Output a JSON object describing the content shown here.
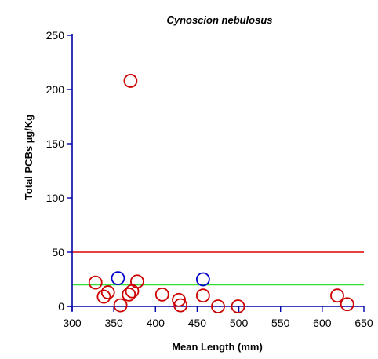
{
  "chart_data": {
    "type": "scatter",
    "title": "Cynoscion nebulosus",
    "xlabel": "Mean Length (mm)",
    "ylabel": "Total PCBs µg/Kg",
    "xlim": [
      300,
      650
    ],
    "ylim": [
      0,
      250
    ],
    "xticks": [
      300,
      350,
      400,
      450,
      500,
      550,
      600,
      650
    ],
    "yticks": [
      0,
      50,
      100,
      150,
      200,
      250
    ],
    "grid": false,
    "legend": "none",
    "series": [
      {
        "color": "#cc0000",
        "points": [
          [
            370,
            208
          ],
          [
            328,
            22
          ],
          [
            338,
            9
          ],
          [
            343,
            13
          ],
          [
            358,
            1
          ],
          [
            368,
            11
          ],
          [
            372,
            14
          ],
          [
            378,
            23
          ],
          [
            408,
            11
          ],
          [
            428,
            6
          ],
          [
            430,
            1
          ],
          [
            457,
            10
          ],
          [
            475,
            0
          ],
          [
            499,
            0
          ],
          [
            618,
            10
          ],
          [
            630,
            2
          ]
        ]
      },
      {
        "color": "#0000cc",
        "points": [
          [
            355,
            26
          ],
          [
            457,
            25
          ]
        ]
      }
    ],
    "reference_lines": [
      {
        "y": 50,
        "color": "#dd0000"
      },
      {
        "y": 20,
        "color": "#33dd33"
      }
    ],
    "axis_color": "#0000aa"
  }
}
